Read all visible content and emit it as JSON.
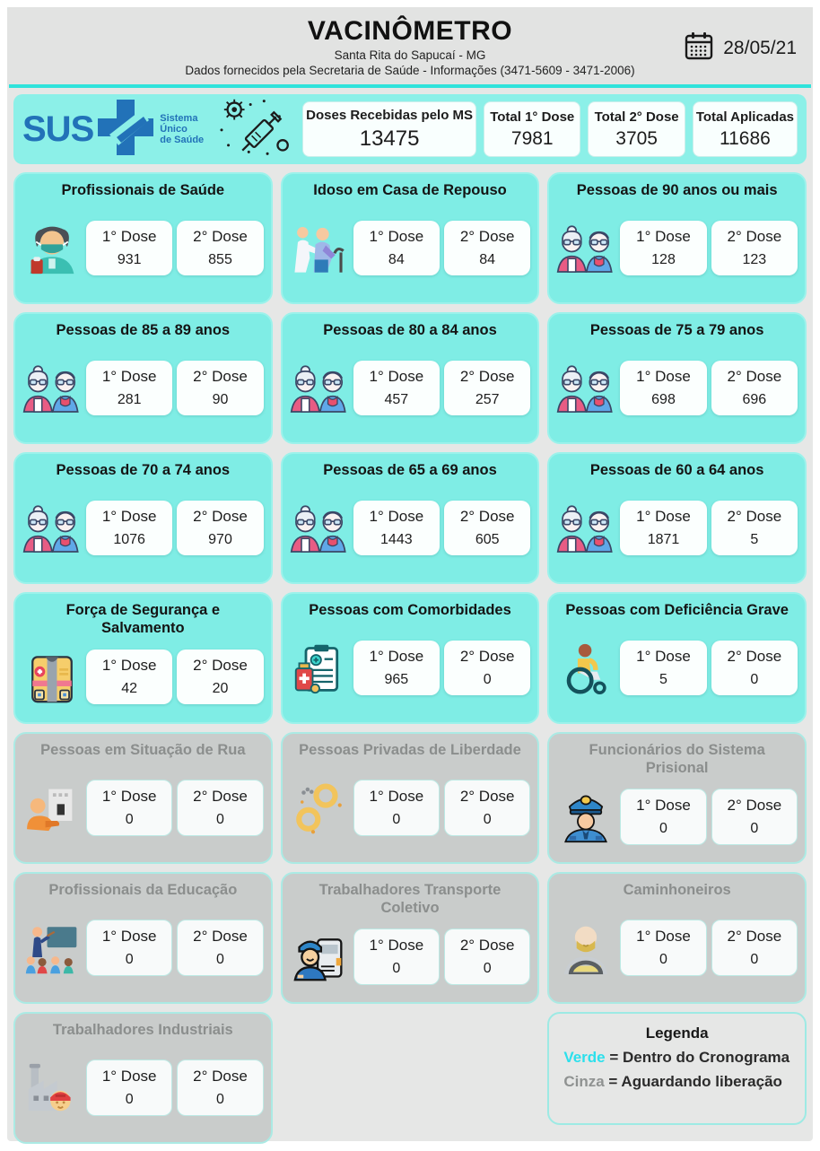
{
  "header": {
    "title": "VACINÔMETRO",
    "subtitle": "Santa Rita do Sapucaí - MG",
    "info": "Dados fornecidos pela Secretaria de Saúde - Informações (3471-5609 - 3471-2006)",
    "date": "28/05/21",
    "calendar_icon": "calendar-icon"
  },
  "summary": {
    "logo": {
      "text": "SUS",
      "tagline_l1": "Sistema",
      "tagline_l2": "Único",
      "tagline_l3": "de Saúde",
      "color": "#2272B8"
    },
    "syringe_icon": "syringe-virus-icon",
    "stats": [
      {
        "label": "Doses Recebidas pelo MS",
        "value": "13475"
      },
      {
        "label": "Total 1° Dose",
        "value": "7981"
      },
      {
        "label": "Total 2° Dose",
        "value": "3705"
      },
      {
        "label": "Total Aplicadas",
        "value": "11686"
      }
    ]
  },
  "dose_labels": {
    "first": "1° Dose",
    "second": "2° Dose"
  },
  "cards": [
    {
      "title": "Profissionais de Saúde",
      "icon": "health-worker-icon",
      "dose1": "931",
      "dose2": "855",
      "status": "active"
    },
    {
      "title": "Idoso em Casa de Repouso",
      "icon": "caregiver-elderly-icon",
      "dose1": "84",
      "dose2": "84",
      "status": "active"
    },
    {
      "title": "Pessoas de 90 anos ou mais",
      "icon": "elderly-couple-icon",
      "dose1": "128",
      "dose2": "123",
      "status": "active"
    },
    {
      "title": "Pessoas de 85 a 89 anos",
      "icon": "elderly-couple-icon",
      "dose1": "281",
      "dose2": "90",
      "status": "active"
    },
    {
      "title": "Pessoas de 80 a 84 anos",
      "icon": "elderly-couple-icon",
      "dose1": "457",
      "dose2": "257",
      "status": "active"
    },
    {
      "title": "Pessoas de 75 a 79 anos",
      "icon": "elderly-couple-icon",
      "dose1": "698",
      "dose2": "696",
      "status": "active"
    },
    {
      "title": "Pessoas de 70 a 74 anos",
      "icon": "elderly-couple-icon",
      "dose1": "1076",
      "dose2": "970",
      "status": "active"
    },
    {
      "title": "Pessoas de 65 a 69 anos",
      "icon": "elderly-couple-icon",
      "dose1": "1443",
      "dose2": "605",
      "status": "active"
    },
    {
      "title": "Pessoas de 60 a 64 anos",
      "icon": "elderly-couple-icon",
      "dose1": "1871",
      "dose2": "5",
      "status": "active"
    },
    {
      "title": "Força de Segurança e Salvamento",
      "icon": "safety-vest-icon",
      "dose1": "42",
      "dose2": "20",
      "status": "active"
    },
    {
      "title": "Pessoas com Comorbidades",
      "icon": "comorbidities-icon",
      "dose1": "965",
      "dose2": "0",
      "status": "active"
    },
    {
      "title": "Pessoas com Deficiência Grave",
      "icon": "wheelchair-icon",
      "dose1": "5",
      "dose2": "0",
      "status": "active"
    },
    {
      "title": "Pessoas em Situação de Rua",
      "icon": "homeless-icon",
      "dose1": "0",
      "dose2": "0",
      "status": "waiting"
    },
    {
      "title": "Pessoas Privadas de Liberdade",
      "icon": "handcuffs-icon",
      "dose1": "0",
      "dose2": "0",
      "status": "waiting"
    },
    {
      "title": "Funcionários do Sistema Prisional",
      "icon": "prison-guard-icon",
      "dose1": "0",
      "dose2": "0",
      "status": "waiting"
    },
    {
      "title": "Profissionais da Educação",
      "icon": "teacher-icon",
      "dose1": "0",
      "dose2": "0",
      "status": "waiting"
    },
    {
      "title": "Trabalhadores Transporte Coletivo",
      "icon": "bus-driver-icon",
      "dose1": "0",
      "dose2": "0",
      "status": "waiting"
    },
    {
      "title": "Caminhoneiros",
      "icon": "trucker-icon",
      "dose1": "0",
      "dose2": "0",
      "status": "waiting"
    },
    {
      "title": "Trabalhadores Industriais",
      "icon": "factory-worker-icon",
      "dose1": "0",
      "dose2": "0",
      "status": "waiting"
    }
  ],
  "legend": {
    "title": "Legenda",
    "items": [
      {
        "term": "Verde",
        "term_color": "#2BE0EC",
        "desc": "= Dentro do Cronograma"
      },
      {
        "term": "Cinza",
        "term_color": "#8F9291",
        "desc": "= Aguardando liberação"
      }
    ]
  },
  "colors": {
    "accent_divider": "#2FE3DB",
    "card_active": "#7FEDE5",
    "card_waiting": "#C9CCCB",
    "sus_blue": "#2272B8",
    "legend_green": "#2BE0EC",
    "legend_gray": "#8F9291"
  }
}
